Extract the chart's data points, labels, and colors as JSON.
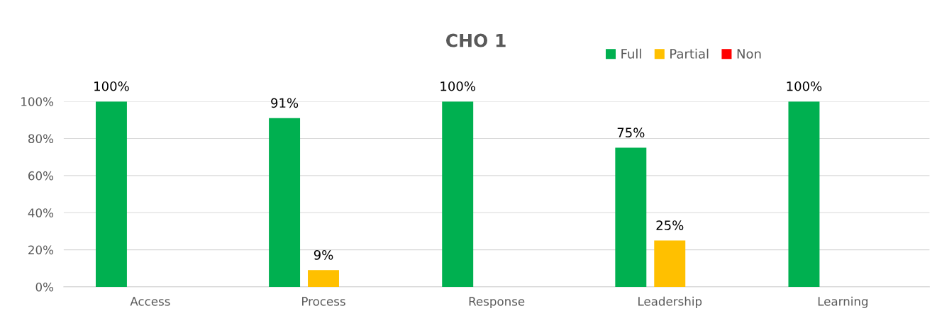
{
  "chart_data": {
    "type": "bar",
    "title": "CHO 1",
    "categories": [
      "Access",
      "Process",
      "Response",
      "Leadership",
      "Learning"
    ],
    "series": [
      {
        "name": "Full",
        "color": "#00b050",
        "values": [
          100,
          91,
          100,
          75,
          100
        ],
        "value_labels": [
          "100%",
          "91%",
          "100%",
          "75%",
          "100%"
        ]
      },
      {
        "name": "Partial",
        "color": "#ffc000",
        "values": [
          0,
          9,
          0,
          25,
          0
        ],
        "value_labels": [
          null,
          "9%",
          null,
          "25%",
          null
        ]
      },
      {
        "name": "Non",
        "color": "#ff0000",
        "values": [
          0,
          0,
          0,
          0,
          0
        ],
        "value_labels": [
          null,
          null,
          null,
          null,
          null
        ]
      }
    ],
    "ylim": [
      0,
      100
    ],
    "yticks": [
      {
        "value": 0,
        "label": "0%"
      },
      {
        "value": 20,
        "label": "20%"
      },
      {
        "value": 40,
        "label": "40%"
      },
      {
        "value": 60,
        "label": "60%"
      },
      {
        "value": 80,
        "label": "80%"
      },
      {
        "value": 100,
        "label": "100%"
      }
    ],
    "grid": "y",
    "legend": "top"
  }
}
